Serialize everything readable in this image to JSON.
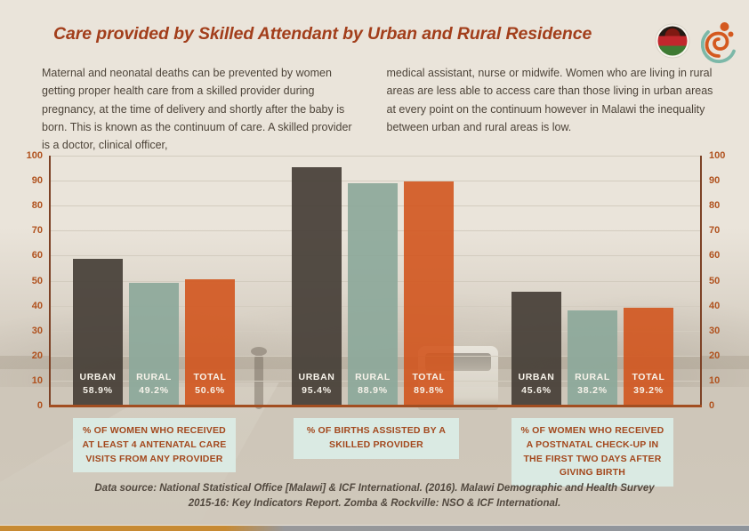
{
  "page": {
    "title": "Care provided by Skilled Attendant by Urban and Rural Residence",
    "intro_left": "Maternal and neonatal deaths can be prevented by women getting proper health care from a skilled provider during pregnancy, at the time of delivery and shortly after the baby is born. This is known as the continuum of care.  A skilled provider is a doctor, clinical officer,",
    "intro_right": "medical assistant, nurse or midwife.  Women who are living in rural areas are less able to access care than those living in urban areas at every point on the continuum however in Malawi the inequality between urban and rural areas is low.",
    "source_line1": "Data source: National Statistical Office [Malawi] & ICF International. (2016). Malawi Demographic and Health Survey",
    "source_line2": "2015-16: Key Indicators Report. Zomba & Rockville: NSO & ICF International."
  },
  "icons": {
    "flag": "malawi-flag",
    "logo": "nso-spiral-logo"
  },
  "colors": {
    "accent": "#a23e1b",
    "axis": "#7d4226",
    "tick_label": "#b0511d",
    "urban": "#474038",
    "rural": "#8ca89a",
    "total": "#d1551e",
    "label_box_bg": "#dbede6",
    "label_box_text": "#a3481d"
  },
  "chart_data": {
    "type": "bar",
    "title": "Care provided by Skilled Attendant by Urban and Rural Residence",
    "ylabel": "",
    "xlabel": "",
    "ylim": [
      0,
      100
    ],
    "yticks": [
      0,
      10,
      20,
      30,
      40,
      50,
      60,
      70,
      80,
      90,
      100
    ],
    "grid": true,
    "legend_position": "none",
    "series_order": [
      "URBAN",
      "RURAL",
      "TOTAL"
    ],
    "series_colors": {
      "URBAN": "rgba(71,64,56,.93)",
      "RURAL": "rgba(140,168,154,.92)",
      "TOTAL": "rgba(209,85,30,.9)"
    },
    "groups": [
      {
        "label": "% OF WOMEN WHO RECEIVED AT LEAST 4 ANTENATAL CARE VISITS FROM ANY PROVIDER",
        "bars": [
          {
            "name": "URBAN",
            "value": 58.9,
            "value_label": "58.9%"
          },
          {
            "name": "RURAL",
            "value": 49.2,
            "value_label": "49.2%"
          },
          {
            "name": "TOTAL",
            "value": 50.6,
            "value_label": "50.6%"
          }
        ]
      },
      {
        "label": "% OF BIRTHS ASSISTED BY A SKILLED PROVIDER",
        "bars": [
          {
            "name": "URBAN",
            "value": 95.4,
            "value_label": "95.4%"
          },
          {
            "name": "RURAL",
            "value": 88.9,
            "value_label": "88.9%"
          },
          {
            "name": "TOTAL",
            "value": 89.8,
            "value_label": "89.8%"
          }
        ]
      },
      {
        "label": "% OF  WOMEN WHO RECEIVED A POSTNATAL CHECK-UP IN THE FIRST TWO DAYS AFTER GIVING BIRTH",
        "bars": [
          {
            "name": "URBAN",
            "value": 45.6,
            "value_label": "45.6%"
          },
          {
            "name": "RURAL",
            "value": 38.2,
            "value_label": "38.2%"
          },
          {
            "name": "TOTAL",
            "value": 39.2,
            "value_label": "39.2%"
          }
        ]
      }
    ]
  }
}
